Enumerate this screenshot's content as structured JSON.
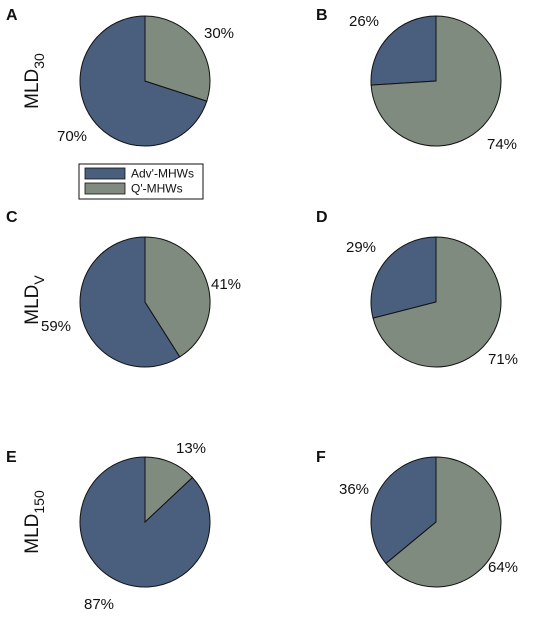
{
  "colors": {
    "adv": "#4a5e7e",
    "q": "#7f8b7e",
    "stroke": "#111111"
  },
  "row_labels": [
    {
      "main": "MLD",
      "sub": "30"
    },
    {
      "main": "MLD",
      "sub": "V"
    },
    {
      "main": "MLD",
      "sub": "150"
    }
  ],
  "legend": {
    "entries": [
      "Adv'-MHWs",
      "Q'-MHWs"
    ]
  },
  "chart_data": [
    {
      "panel": "A",
      "type": "pie",
      "labels": [
        "Adv'-MHWs",
        "Q'-MHWs"
      ],
      "values": [
        70,
        30
      ],
      "value_labels": [
        "70%",
        "30%"
      ]
    },
    {
      "panel": "B",
      "type": "pie",
      "labels": [
        "Adv'-MHWs",
        "Q'-MHWs"
      ],
      "values": [
        26,
        74
      ],
      "value_labels": [
        "26%",
        "74%"
      ]
    },
    {
      "panel": "C",
      "type": "pie",
      "labels": [
        "Adv'-MHWs",
        "Q'-MHWs"
      ],
      "values": [
        59,
        41
      ],
      "value_labels": [
        "59%",
        "41%"
      ]
    },
    {
      "panel": "D",
      "type": "pie",
      "labels": [
        "Adv'-MHWs",
        "Q'-MHWs"
      ],
      "values": [
        29,
        71
      ],
      "value_labels": [
        "29%",
        "71%"
      ]
    },
    {
      "panel": "E",
      "type": "pie",
      "labels": [
        "Adv'-MHWs",
        "Q'-MHWs"
      ],
      "values": [
        87,
        13
      ],
      "value_labels": [
        "87%",
        "13%"
      ]
    },
    {
      "panel": "F",
      "type": "pie",
      "labels": [
        "Adv'-MHWs",
        "Q'-MHWs"
      ],
      "values": [
        36,
        64
      ],
      "value_labels": [
        "36%",
        "64%"
      ]
    }
  ]
}
